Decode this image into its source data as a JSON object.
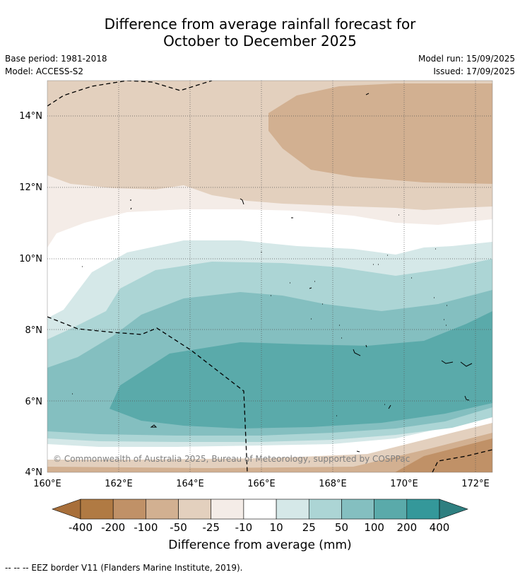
{
  "title_line1": "Difference from average rainfall forecast for",
  "title_line2": "October to December 2025",
  "base_period": "Base period: 1981-2018",
  "model": "Model: ACCESS-S2",
  "model_run": "Model run: 15/09/2025",
  "issued": "Issued: 17/09/2025",
  "lat_labels": [
    "14°N",
    "12°N",
    "10°N",
    "8°N",
    "6°N",
    "4°N"
  ],
  "lon_labels": [
    "160°E",
    "162°E",
    "164°E",
    "166°E",
    "168°E",
    "170°E",
    "172°E"
  ],
  "copyright": "© Commonwealth of Australia 2025, Bureau of Meteorology, supported by COSPPac",
  "colorbar": {
    "labels": [
      "-400",
      "-200",
      "-100",
      "-50",
      "-25",
      "-10",
      "10",
      "25",
      "50",
      "100",
      "200",
      "400"
    ],
    "colors": [
      "#a86f3a",
      "#b07a43",
      "#c09167",
      "#d2b091",
      "#e3d0be",
      "#f4ece7",
      "#ffffff",
      "#d5e8e8",
      "#acd5d5",
      "#84bfc0",
      "#5aaaaa",
      "#34989a",
      "#2e7f80"
    ],
    "title": "Difference from average (mm)"
  },
  "footnote": "--  --  -- EEZ border V11 (Flanders Marine Institute, 2019)."
}
